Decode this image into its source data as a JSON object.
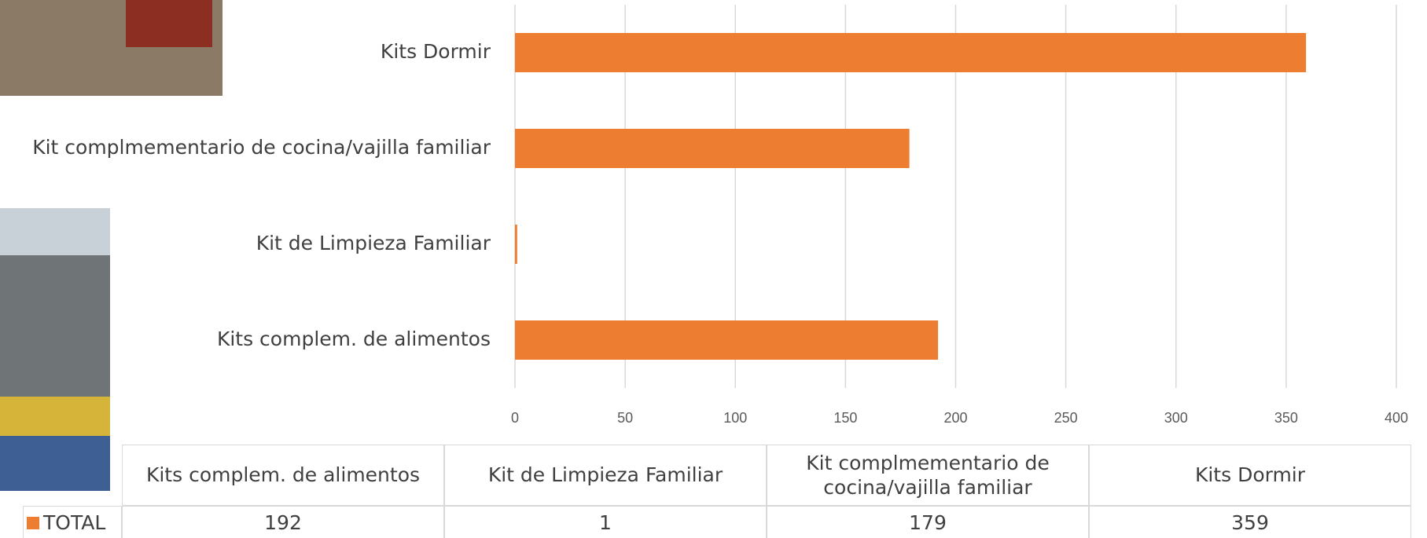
{
  "chart_data": {
    "type": "bar",
    "orientation": "horizontal",
    "categories": [
      "Kits complem. de alimentos",
      "Kit de Limpieza Familiar",
      "Kit complmementario de cocina/vajilla familiar",
      "Kits Dormir"
    ],
    "series": [
      {
        "name": "TOTAL",
        "color": "#ed7d31",
        "values": [
          192,
          1,
          179,
          359
        ]
      }
    ],
    "xlim": [
      0,
      400
    ],
    "xticks": [
      0,
      50,
      100,
      150,
      200,
      250,
      300,
      350,
      400
    ],
    "grid": true
  }
}
